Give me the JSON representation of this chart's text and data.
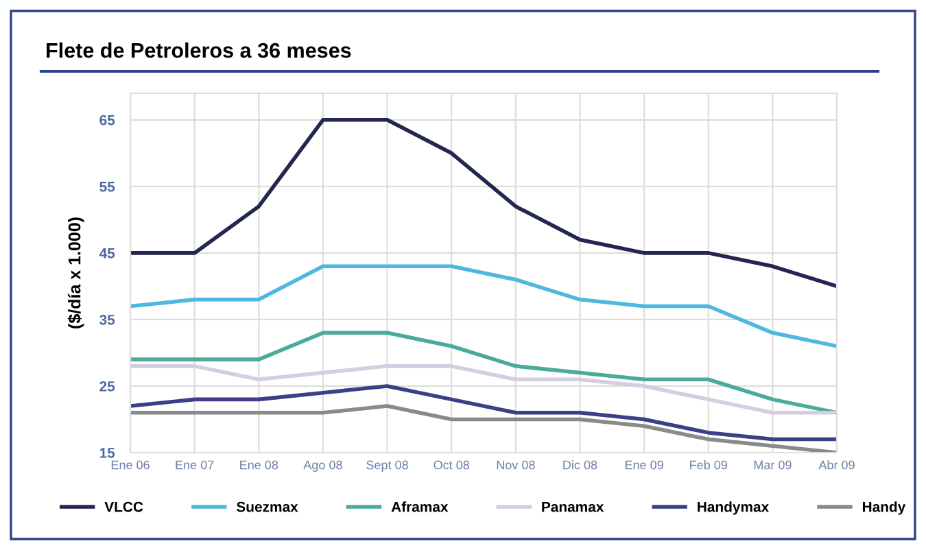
{
  "chart_data": {
    "type": "line",
    "title": "Flete de Petroleros a 36 meses",
    "ylabel": "($/día x 1.000)",
    "categories": [
      "Ene 06",
      "Ene 07",
      "Ene 08",
      "Ago 08",
      "Sept 08",
      "Oct 08",
      "Nov 08",
      "Dic 08",
      "Ene 09",
      "Feb 09",
      "Mar 09",
      "Abr 09"
    ],
    "series": [
      {
        "name": "VLCC",
        "color": "#23264f",
        "values": [
          45,
          45,
          52,
          65,
          65,
          60,
          52,
          47,
          45,
          45,
          43,
          40
        ]
      },
      {
        "name": "Suezmax",
        "color": "#4fb8de",
        "values": [
          37,
          38,
          38,
          43,
          43,
          43,
          41,
          38,
          37,
          37,
          33,
          31
        ]
      },
      {
        "name": "Aframax",
        "color": "#4aab9b",
        "values": [
          29,
          29,
          29,
          33,
          33,
          31,
          28,
          27,
          26,
          26,
          23,
          21
        ]
      },
      {
        "name": "Panamax",
        "color": "#d5cde0",
        "values": [
          28,
          28,
          26,
          27,
          28,
          28,
          26,
          26,
          25,
          23,
          21,
          21
        ]
      },
      {
        "name": "Handymax",
        "color": "#3c3f86",
        "values": [
          22,
          23,
          23,
          24,
          25,
          23,
          21,
          21,
          20,
          18,
          17,
          17
        ]
      },
      {
        "name": "Handy",
        "color": "#8a8a8a",
        "values": [
          21,
          21,
          21,
          21,
          22,
          20,
          20,
          20,
          19,
          17,
          16,
          15
        ]
      }
    ],
    "ylim": [
      15,
      69
    ],
    "yticks": [
      15,
      25,
      35,
      45,
      55,
      65
    ],
    "grid": true,
    "legend": "bottom",
    "marker": "none",
    "line_style": "solid"
  }
}
